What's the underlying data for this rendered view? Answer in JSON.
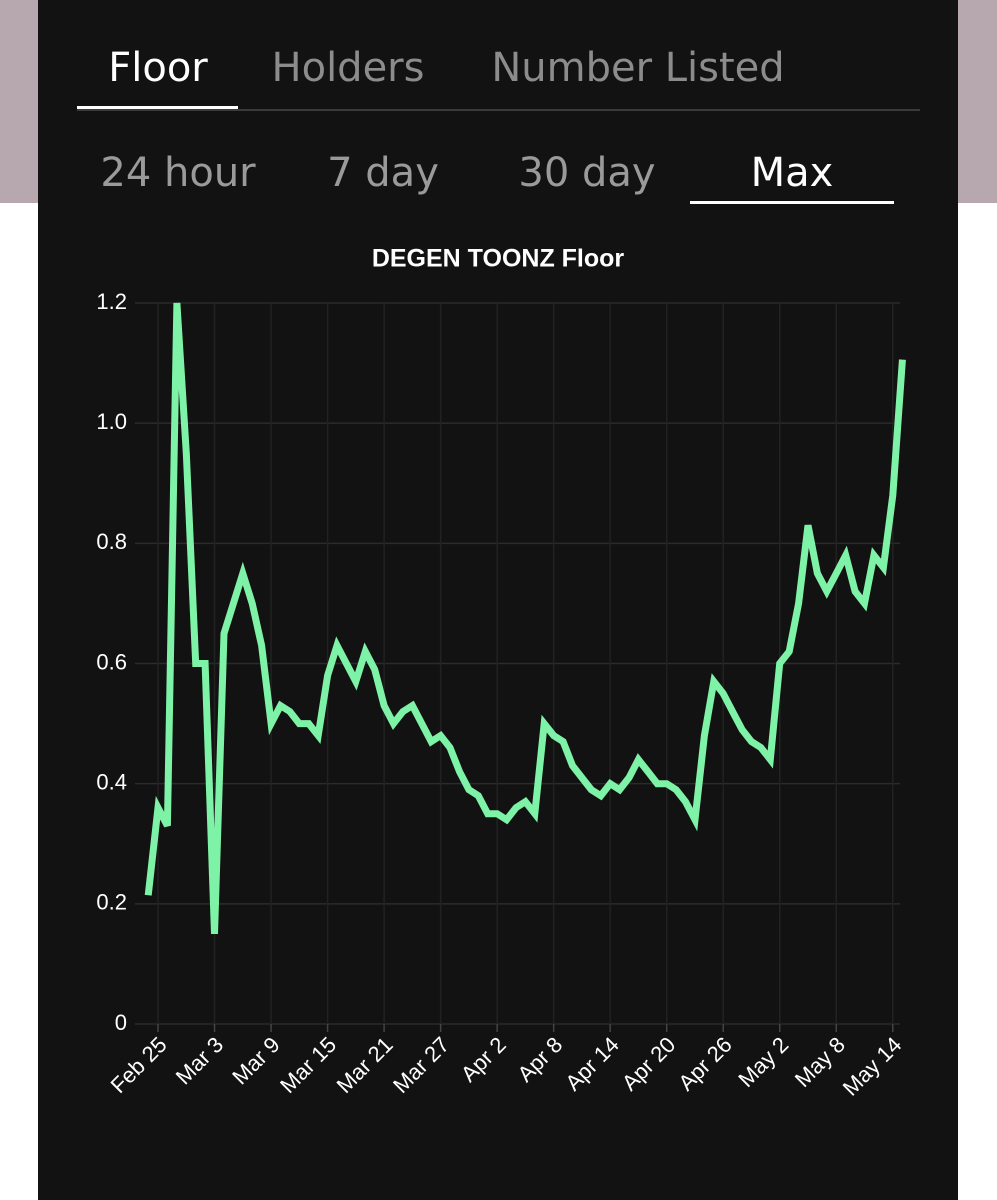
{
  "tabs": [
    "Floor",
    "Holders",
    "Number Listed"
  ],
  "ranges": [
    "24 hour",
    "7 day",
    "30 day",
    "Max"
  ],
  "chart_data": {
    "type": "line",
    "title": "DEGEN TOONZ Floor",
    "categories": [
      null,
      "Feb 25",
      null,
      null,
      null,
      null,
      null,
      "Mar 3",
      null,
      null,
      null,
      null,
      null,
      "Mar 9",
      null,
      null,
      null,
      null,
      null,
      "Mar 15",
      null,
      null,
      null,
      null,
      null,
      "Mar 21",
      null,
      null,
      null,
      null,
      null,
      "Mar 27",
      null,
      null,
      null,
      null,
      null,
      "Apr 2",
      null,
      null,
      null,
      null,
      null,
      "Apr 8",
      null,
      null,
      null,
      null,
      null,
      "Apr 14",
      null,
      null,
      null,
      null,
      null,
      "Apr 20",
      null,
      null,
      null,
      null,
      null,
      "Apr 26",
      null,
      null,
      null,
      null,
      null,
      "May 2",
      null,
      null,
      null,
      null,
      null,
      "May 8",
      null,
      null,
      null,
      null,
      null,
      "May 14",
      null
    ],
    "series": [
      {
        "name": "Floor",
        "color": "#7ef2a6",
        "values": [
          0.22,
          0.36,
          0.33,
          1.2,
          0.95,
          0.6,
          0.6,
          0.15,
          0.65,
          0.7,
          0.75,
          0.7,
          0.63,
          0.5,
          0.53,
          0.52,
          0.5,
          0.5,
          0.48,
          0.58,
          0.63,
          0.6,
          0.57,
          0.62,
          0.59,
          0.53,
          0.5,
          0.52,
          0.53,
          0.5,
          0.47,
          0.48,
          0.46,
          0.42,
          0.39,
          0.38,
          0.35,
          0.35,
          0.34,
          0.36,
          0.37,
          0.35,
          0.5,
          0.48,
          0.47,
          0.43,
          0.41,
          0.39,
          0.38,
          0.4,
          0.39,
          0.41,
          0.44,
          0.42,
          0.4,
          0.4,
          0.39,
          0.37,
          0.34,
          0.48,
          0.57,
          0.55,
          0.52,
          0.49,
          0.47,
          0.46,
          0.44,
          0.6,
          0.62,
          0.7,
          0.83,
          0.75,
          0.72,
          0.75,
          0.78,
          0.72,
          0.7,
          0.78,
          0.76,
          0.88,
          1.1
        ]
      }
    ],
    "ylim": [
      0,
      1.2
    ],
    "yticks": [
      0,
      0.2,
      0.4,
      0.6,
      0.8,
      {
        "value": 1,
        "label": "1.0"
      },
      1.2
    ],
    "grid": true
  }
}
